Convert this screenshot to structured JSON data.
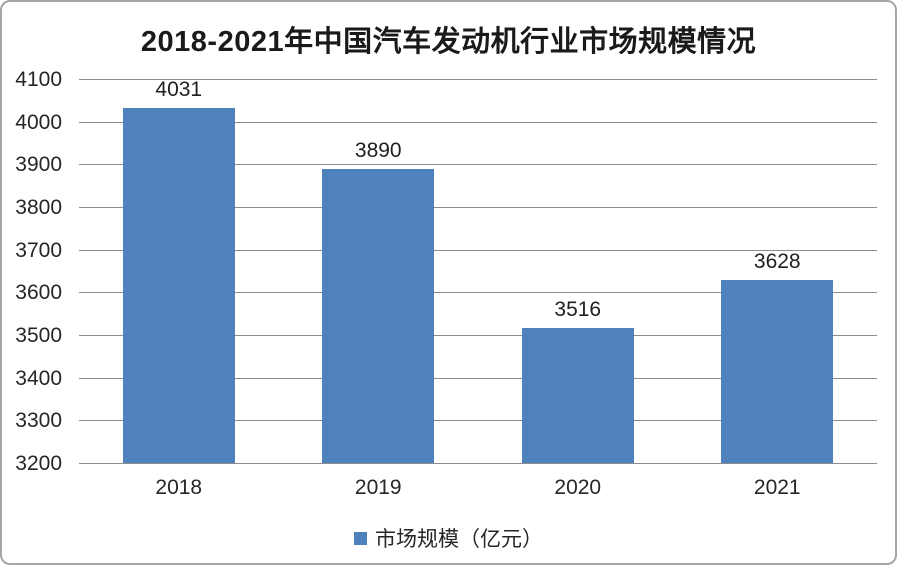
{
  "chart_data": {
    "type": "bar",
    "title": "2018-2021年中国汽车发动机行业市场规模情况",
    "categories": [
      "2018",
      "2019",
      "2020",
      "2021"
    ],
    "series": [
      {
        "name": "市场规模（亿元）",
        "values": [
          4031,
          3890,
          3516,
          3628
        ]
      }
    ],
    "xlabel": "",
    "ylabel": "",
    "ylim": [
      3200,
      4100
    ],
    "ytick_step": 100,
    "yticks": [
      3200,
      3300,
      3400,
      3500,
      3600,
      3700,
      3800,
      3900,
      4000,
      4100
    ],
    "grid": true,
    "data_labels": true,
    "legend_position": "bottom",
    "colors": {
      "bar": "#4F81BD",
      "gridline": "#8C8C8C",
      "axis_line": "#8C8C8C",
      "text": "#262626",
      "frame_border": "#A6A6A6",
      "background": "#FFFFFF"
    }
  }
}
